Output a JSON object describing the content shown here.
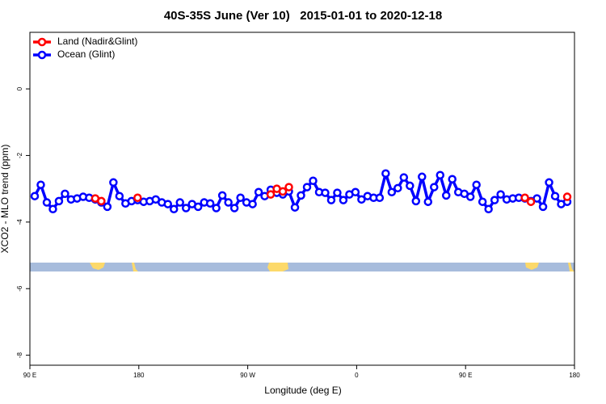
{
  "chart_data": {
    "type": "line",
    "title": "40S-35S June (Ver 10)   2015-01-01 to 2020-12-18",
    "xlabel": "Longitude (deg E)",
    "ylabel": "XCO2 - MLO trend (ppm)",
    "x": [
      94,
      99,
      104,
      109,
      114,
      119,
      124,
      129,
      134,
      139,
      144,
      149,
      154,
      159,
      164,
      169,
      174,
      179,
      184,
      189,
      194,
      199,
      204,
      209,
      214,
      219,
      224,
      229,
      234,
      239,
      244,
      249,
      254,
      259,
      264,
      269,
      274,
      279,
      284,
      289,
      294,
      299,
      304,
      309,
      314,
      319,
      324,
      329,
      334,
      339,
      344,
      349,
      354,
      359,
      364,
      369,
      374,
      379,
      384,
      389,
      394,
      399,
      404,
      409,
      414,
      419,
      424,
      429,
      434,
      439,
      444,
      449,
      454,
      459,
      464,
      469,
      474,
      479,
      484,
      489,
      494,
      499,
      504,
      509,
      514,
      519,
      524,
      529,
      534
    ],
    "series": [
      {
        "name": "Ocean (Glint)",
        "color": "#0000ff",
        "values": [
          -3.22,
          -2.88,
          -3.41,
          -3.61,
          -3.37,
          -3.15,
          -3.32,
          -3.29,
          -3.24,
          -3.27,
          -3.32,
          -3.41,
          -3.54,
          -2.81,
          -3.22,
          -3.44,
          -3.37,
          -3.34,
          -3.39,
          -3.37,
          -3.32,
          -3.41,
          -3.46,
          -3.61,
          -3.41,
          -3.58,
          -3.46,
          -3.54,
          -3.41,
          -3.44,
          -3.58,
          -3.2,
          -3.41,
          -3.58,
          -3.27,
          -3.41,
          -3.46,
          -3.1,
          -3.22,
          -3.03,
          -3.12,
          -3.17,
          -3.08,
          -3.56,
          -3.2,
          -2.95,
          -2.76,
          -3.1,
          -3.12,
          -3.34,
          -3.12,
          -3.34,
          -3.17,
          -3.1,
          -3.32,
          -3.22,
          -3.27,
          -3.27,
          -2.54,
          -3.1,
          -2.98,
          -2.66,
          -2.91,
          -3.37,
          -2.64,
          -3.39,
          -2.95,
          -2.59,
          -3.2,
          -2.71,
          -3.1,
          -3.15,
          -3.24,
          -2.88,
          -3.39,
          -3.61,
          -3.34,
          -3.17,
          -3.32,
          -3.29,
          -3.27,
          -3.29,
          -3.37,
          -3.29,
          -3.54,
          -2.81,
          -3.22,
          -3.46,
          -3.39
        ]
      },
      {
        "name": "Land (Nadir&Glint)",
        "color": "#ff0000",
        "values": [
          null,
          null,
          null,
          null,
          null,
          null,
          null,
          null,
          null,
          null,
          -3.29,
          -3.37,
          null,
          null,
          null,
          null,
          null,
          -3.27,
          null,
          null,
          null,
          null,
          null,
          null,
          null,
          null,
          null,
          null,
          null,
          null,
          null,
          null,
          null,
          null,
          null,
          null,
          null,
          null,
          null,
          -3.17,
          -3.0,
          -3.08,
          -2.95,
          null,
          null,
          null,
          null,
          null,
          null,
          null,
          null,
          null,
          null,
          null,
          null,
          null,
          null,
          null,
          null,
          null,
          null,
          null,
          null,
          null,
          null,
          null,
          null,
          null,
          null,
          null,
          null,
          null,
          null,
          null,
          null,
          null,
          null,
          null,
          null,
          null,
          null,
          -3.27,
          -3.39,
          null,
          null,
          null,
          null,
          null,
          -3.24
        ]
      }
    ],
    "legend_order": [
      "Land (Nadir&Glint)",
      "Ocean (Glint)"
    ],
    "legend": "top-left",
    "grid": false,
    "xlim": [
      90,
      540
    ],
    "xticks": [
      {
        "value": 90,
        "label": "90 E"
      },
      180,
      {
        "value": 270,
        "label": "90 W"
      },
      {
        "value": 360,
        "label": "0"
      },
      {
        "value": 450,
        "label": "90 E"
      },
      {
        "value": 540,
        "label": "180"
      }
    ],
    "ylim": [
      -8.3,
      1.7
    ],
    "yticks": [
      0,
      -2,
      -4,
      -6,
      -8
    ]
  }
}
